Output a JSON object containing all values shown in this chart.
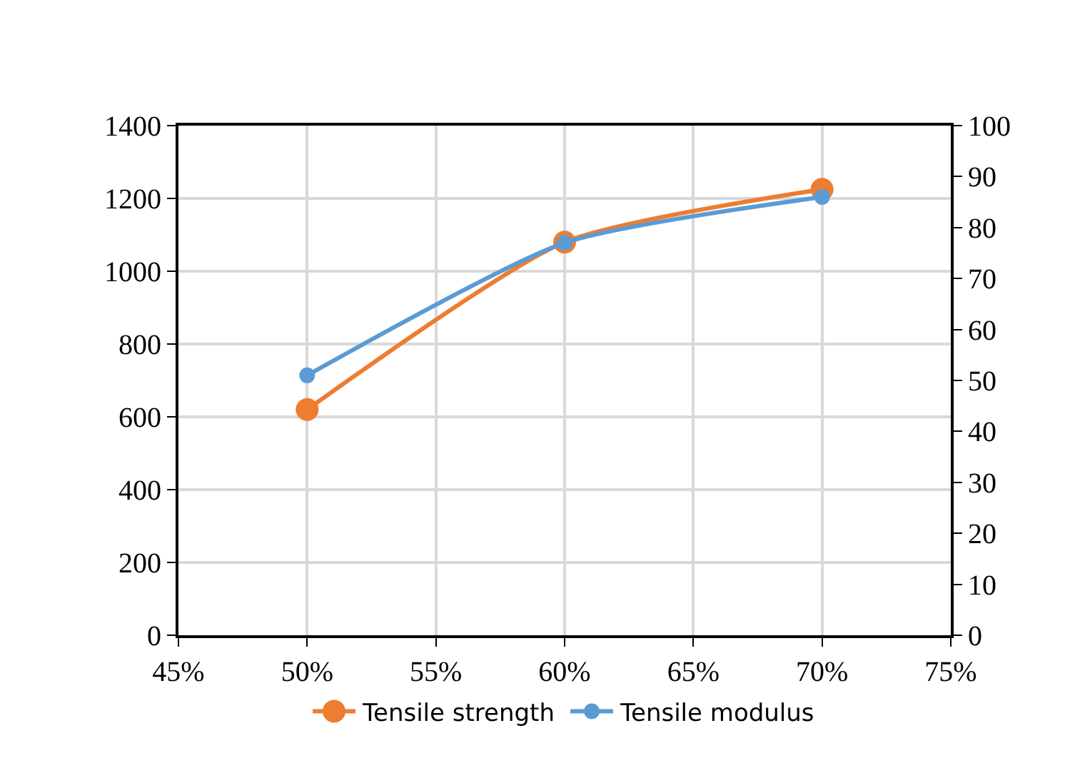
{
  "chart_data": {
    "type": "line",
    "x": [
      50,
      60,
      70
    ],
    "series": [
      {
        "name": "Tensile strength",
        "color": "#ed7d31",
        "values": [
          620,
          1080,
          1225
        ]
      },
      {
        "name": "Tensile modulus",
        "color": "#5b9bd5",
        "values": [
          51,
          77,
          86
        ],
        "axis": "y2"
      }
    ],
    "xlim": [
      45,
      75
    ],
    "xticks": [
      {
        "value": 45,
        "label": "45%"
      },
      {
        "value": 50,
        "label": "50%"
      },
      {
        "value": 55,
        "label": "55%"
      },
      {
        "value": 60,
        "label": "60%"
      },
      {
        "value": 65,
        "label": "65%"
      },
      {
        "value": 70,
        "label": "70%"
      },
      {
        "value": 75,
        "label": "75%"
      }
    ],
    "ylim": [
      0,
      1400
    ],
    "yticks": [
      0,
      200,
      400,
      600,
      800,
      1000,
      1200,
      1400
    ],
    "y2lim": [
      0,
      100
    ],
    "y2ticks": [
      0,
      10,
      20,
      30,
      40,
      50,
      60,
      70,
      80,
      90,
      100
    ],
    "grid": true,
    "legend": "bottom",
    "marker": "circle",
    "line_style": "solid"
  }
}
